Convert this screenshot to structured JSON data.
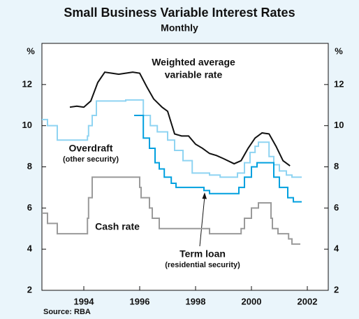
{
  "chart_data": {
    "type": "line",
    "title": "Small Business Variable Interest Rates",
    "subtitle": "Monthly",
    "ylabel": "%",
    "y2label": "%",
    "source": "Source: RBA",
    "xlim": [
      1992.5,
      2002.75
    ],
    "xticks": [
      1994,
      1996,
      1998,
      2000,
      2002
    ],
    "ylim": [
      2,
      14
    ],
    "yticks": [
      2,
      4,
      6,
      8,
      10,
      12
    ],
    "y2lim": [
      2,
      14
    ],
    "y2ticks": [
      2,
      4,
      6,
      8,
      10,
      12
    ],
    "series": [
      {
        "label": [
          "Weighted average",
          "variable rate"
        ],
        "color": "#111111",
        "step": false,
        "x": [
          1993.5,
          1993.75,
          1994,
          1994.25,
          1994.5,
          1994.75,
          1995,
          1995.25,
          1995.5,
          1995.75,
          1996,
          1996.25,
          1996.5,
          1996.8,
          1997,
          1997.25,
          1997.5,
          1997.75,
          1998,
          1998.25,
          1998.5,
          1998.75,
          1999,
          1999.38,
          1999.63,
          1999.88,
          2000.13,
          2000.38,
          2000.63,
          2000.88,
          2001.13,
          2001.38
        ],
        "values": [
          10.9,
          10.95,
          10.9,
          11.2,
          12.1,
          12.6,
          12.55,
          12.5,
          12.55,
          12.6,
          12.55,
          11.9,
          11.3,
          10.9,
          10.7,
          9.6,
          9.5,
          9.5,
          9.1,
          8.9,
          8.65,
          8.55,
          8.4,
          8.15,
          8.3,
          8.9,
          9.4,
          9.65,
          9.6,
          9.0,
          8.3,
          8.05
        ]
      },
      {
        "name": "Overdraft",
        "note": "(other security)",
        "color": "#8fd4f2",
        "step": true,
        "x": [
          1992.5,
          1992.7,
          1993.05,
          1994.13,
          1994.17,
          1994.3,
          1994.45,
          1994.55,
          1995.13,
          1995.5,
          1996.13,
          1996.38,
          1996.63,
          1997,
          1997.25,
          1997.55,
          1997.88,
          1998.5,
          1998.88,
          1999.5,
          1999.75,
          1999.95,
          2000.13,
          2000.25,
          2000.63,
          2000.8,
          2001,
          2001.25,
          2001.45,
          2001.63,
          2001.8
        ],
        "values": [
          10.3,
          10.0,
          9.3,
          9.5,
          10.0,
          10.5,
          11.2,
          11.2,
          11.2,
          11.25,
          10.5,
          10.0,
          9.7,
          9.3,
          8.8,
          8.3,
          7.7,
          7.6,
          7.5,
          7.7,
          8.2,
          8.7,
          9.0,
          9.2,
          8.5,
          8.1,
          7.8,
          7.6,
          7.5,
          7.5,
          7.5
        ]
      },
      {
        "name": "Term loan",
        "note": "(residential security)",
        "color": "#00a0df",
        "step": true,
        "x": [
          1995.8,
          1996.13,
          1996.35,
          1996.55,
          1996.7,
          1996.88,
          1997.13,
          1997.3,
          1998.3,
          1998.5,
          1999.55,
          1999.75,
          2000,
          2000.2,
          2000.8,
          2001,
          2001.3,
          2001.5,
          2001.8
        ],
        "values": [
          10.5,
          9.4,
          8.9,
          8.2,
          7.9,
          7.5,
          7.2,
          7.0,
          6.85,
          6.7,
          7.0,
          7.5,
          8.0,
          8.2,
          7.5,
          7.0,
          6.5,
          6.3,
          6.3
        ]
      },
      {
        "name": "Cash rate",
        "color": "#9a9a9a",
        "step": true,
        "x": [
          1992.5,
          1992.7,
          1993.05,
          1994.13,
          1994.17,
          1994.3,
          1994.5,
          1996,
          1996.05,
          1996.35,
          1996.45,
          1996.7,
          1997,
          1998.5,
          1999.63,
          1999.75,
          2000,
          2000.25,
          2000.7,
          2000.75,
          2000.95,
          2001.33,
          2001.45,
          2001.6,
          2001.75
        ],
        "values": [
          5.75,
          5.25,
          4.75,
          5.5,
          6.5,
          7.5,
          7.5,
          7.0,
          6.5,
          6.0,
          5.5,
          5.0,
          5.0,
          4.75,
          5.0,
          5.5,
          6.0,
          6.25,
          5.5,
          5.0,
          4.75,
          4.5,
          4.25,
          4.25,
          4.25
        ]
      }
    ]
  }
}
